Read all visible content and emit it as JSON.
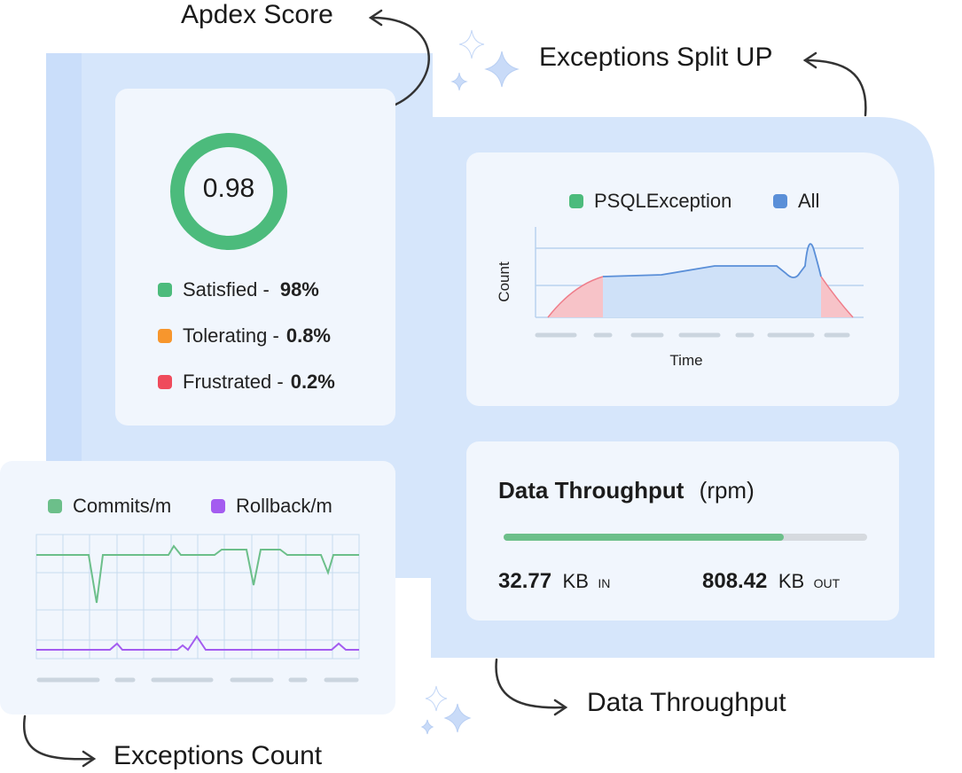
{
  "callouts": {
    "apdex": "Apdex Score",
    "exceptions_split": "Exceptions Split UP",
    "data_throughput": "Data Throughput",
    "exceptions_count": "Exceptions Count"
  },
  "apdex": {
    "score": "0.98",
    "satisfied_label": "Satisfied -",
    "satisfied_value": "98%",
    "tolerating_label": "Tolerating -",
    "tolerating_value": "0.8%",
    "frustrated_label": "Frustrated -",
    "frustrated_value": "0.2%",
    "colors": {
      "satisfied": "#4cbb7c",
      "tolerating": "#f7962d",
      "frustrated": "#ef4b5c"
    }
  },
  "exceptions_split": {
    "legend": [
      {
        "label": "PSQLException",
        "color": "#4cbb7c"
      },
      {
        "label": "All",
        "color": "#5a8fd8"
      }
    ],
    "ylabel": "Count",
    "xlabel": "Time"
  },
  "throughput": {
    "title": "Data Throughput",
    "unit": "(rpm)",
    "progress": 0.77,
    "in_value": "32.77",
    "in_unit": "KB",
    "in_label": "IN",
    "out_value": "808.42",
    "out_unit": "KB",
    "out_label": "OUT"
  },
  "exceptions_count": {
    "legend": [
      {
        "label": "Commits/m",
        "color": "#6cbf8a"
      },
      {
        "label": "Rollback/m",
        "color": "#a45cf0"
      }
    ]
  }
}
